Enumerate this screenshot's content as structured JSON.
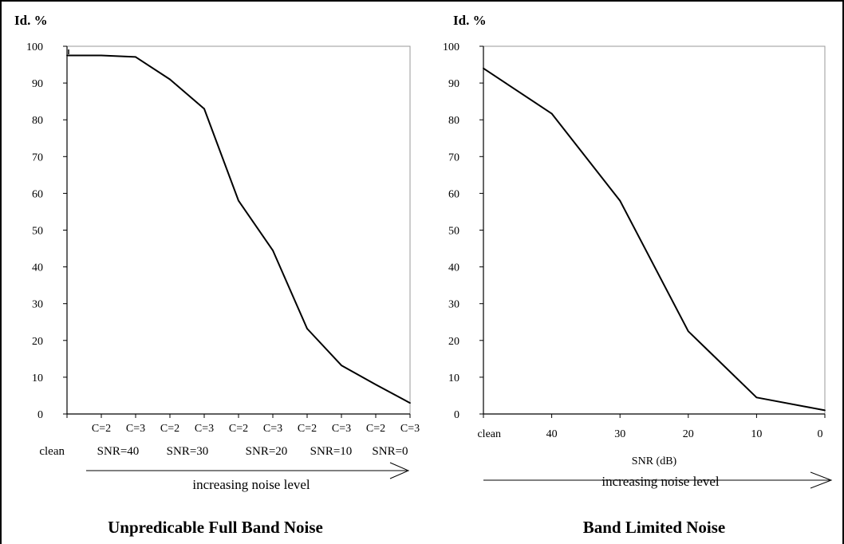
{
  "chart_data": [
    {
      "type": "line",
      "title": "Unpredicable Full Band Noise",
      "ylabel": "Id. %",
      "ylim": [
        0,
        100
      ],
      "yticks": [
        "100",
        "90",
        "80",
        "70",
        "60",
        "50",
        "40",
        "30",
        "20",
        "10",
        "0"
      ],
      "xtick_labels": [
        "C=2",
        "C=3",
        "C=2",
        "C=3",
        "C=2",
        "C=3",
        "C=2",
        "C=3",
        "C=2",
        "C=3"
      ],
      "group_labels": [
        "clean",
        "SNR=40",
        "SNR=30",
        "SNR=20",
        "SNR=10",
        "SNR=0"
      ],
      "arrow_label": "increasing noise level",
      "x": [
        "clean",
        "SNR=40 C=2",
        "SNR=40 C=3",
        "SNR=30 C=2",
        "SNR=30 C=3",
        "SNR=20 C=2",
        "SNR=20 C=3",
        "SNR=10 C=2",
        "SNR=10 C=3",
        "SNR=0 C=2",
        "SNR=0 C=3"
      ],
      "series": [
        {
          "values": [
            97.5,
            97.5,
            97.1,
            91,
            83,
            58,
            44.5,
            23.2,
            13.2,
            8,
            3
          ]
        }
      ],
      "grid": false,
      "color": "#000000"
    },
    {
      "type": "line",
      "title": "Band Limited Noise",
      "ylabel": "Id. %",
      "ylim": [
        0,
        100
      ],
      "yticks": [
        "100",
        "90",
        "80",
        "70",
        "60",
        "50",
        "40",
        "30",
        "20",
        "10",
        "0"
      ],
      "categories": [
        "clean",
        "40",
        "30",
        "20",
        "10",
        "0"
      ],
      "xlabel": "SNR (dB)",
      "arrow_label": "increasing noise level",
      "series": [
        {
          "values": [
            94,
            81.7,
            58,
            22.5,
            4.5,
            1
          ]
        }
      ],
      "grid": false,
      "color": "#000000"
    }
  ]
}
